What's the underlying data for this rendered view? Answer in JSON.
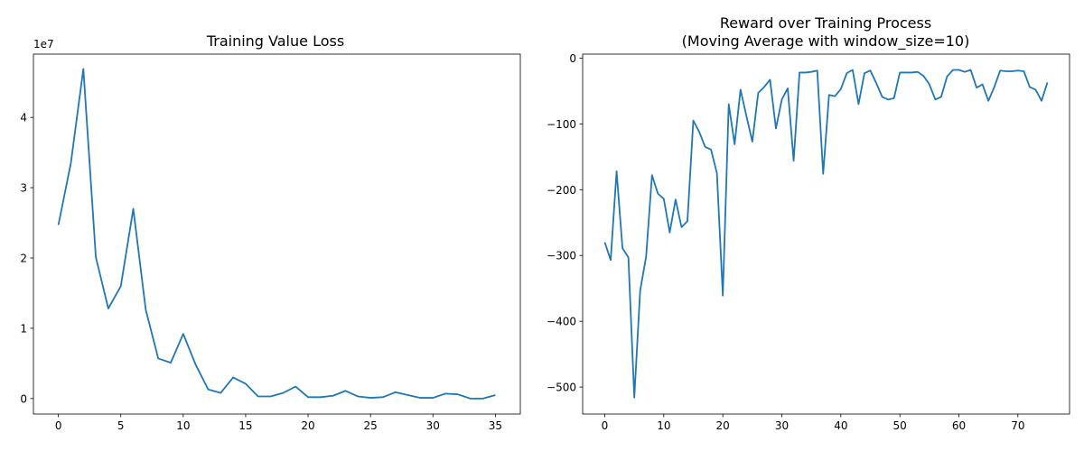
{
  "colors": {
    "series": "#1f77b4",
    "background": "#ffffff",
    "axes": "#000000"
  },
  "chart_data": [
    {
      "type": "line",
      "title": "Training Value Loss",
      "xlabel": "",
      "ylabel": "",
      "y_offset_label": "1e7",
      "xlim": [
        -2,
        37
      ],
      "ylim": [
        -0.22,
        4.9
      ],
      "xticks": [
        0,
        5,
        10,
        15,
        20,
        25,
        30,
        35
      ],
      "yticks": [
        0,
        1,
        2,
        3,
        4
      ],
      "grid": false,
      "series": [
        {
          "x": [
            0,
            1,
            2,
            3,
            4,
            5,
            6,
            7,
            8,
            9,
            10,
            11,
            12,
            13,
            14,
            15,
            16,
            17,
            18,
            19,
            20,
            21,
            22,
            23,
            24,
            25,
            26,
            27,
            28,
            29,
            30,
            31,
            32,
            33,
            34,
            35
          ],
          "values": [
            2.47,
            3.35,
            4.69,
            2.01,
            1.28,
            1.6,
            2.7,
            1.26,
            0.57,
            0.51,
            0.92,
            0.48,
            0.13,
            0.08,
            0.3,
            0.21,
            0.03,
            0.03,
            0.08,
            0.17,
            0.02,
            0.02,
            0.04,
            0.11,
            0.03,
            0.01,
            0.02,
            0.09,
            0.05,
            0.01,
            0.01,
            0.07,
            0.06,
            0.0,
            0.0,
            0.05
          ]
        }
      ]
    },
    {
      "type": "line",
      "title": "Reward over Training Process\n(Moving Average with window_size=10)",
      "xlabel": "",
      "ylabel": "",
      "xlim": [
        -3.75,
        78.75
      ],
      "ylim": [
        -541,
        6
      ],
      "xticks": [
        0,
        10,
        20,
        30,
        40,
        50,
        60,
        70
      ],
      "yticks": [
        0,
        -100,
        -200,
        -300,
        -400,
        -500
      ],
      "grid": false,
      "series": [
        {
          "x": [
            0,
            1,
            2,
            3,
            4,
            5,
            6,
            7,
            8,
            9,
            10,
            11,
            12,
            13,
            14,
            15,
            16,
            17,
            18,
            19,
            20,
            21,
            22,
            23,
            24,
            25,
            26,
            27,
            28,
            29,
            30,
            31,
            32,
            33,
            34,
            35,
            36,
            37,
            38,
            39,
            40,
            41,
            42,
            43,
            44,
            45,
            46,
            47,
            48,
            49,
            50,
            51,
            52,
            53,
            54,
            55,
            56,
            57,
            58,
            59,
            60,
            61,
            62,
            63,
            64,
            65,
            66,
            67,
            68,
            69,
            70,
            71,
            72,
            73,
            74,
            75
          ],
          "values": [
            -280,
            -307,
            -172,
            -289,
            -303,
            -516,
            -353,
            -302,
            -178,
            -206,
            -214,
            -265,
            -215,
            -257,
            -248,
            -95,
            -112,
            -135,
            -139,
            -175,
            -361,
            -70,
            -131,
            -48,
            -88,
            -127,
            -53,
            -44,
            -33,
            -107,
            -63,
            -46,
            -156,
            -22,
            -22,
            -21,
            -19,
            -176,
            -56,
            -58,
            -47,
            -23,
            -18,
            -70,
            -23,
            -19,
            -38,
            -59,
            -63,
            -61,
            -22,
            -22,
            -22,
            -21,
            -27,
            -40,
            -63,
            -59,
            -28,
            -18,
            -18,
            -21,
            -18,
            -45,
            -40,
            -65,
            -44,
            -19,
            -20,
            -20,
            -19,
            -20,
            -44,
            -48,
            -65,
            -37
          ]
        }
      ]
    }
  ]
}
